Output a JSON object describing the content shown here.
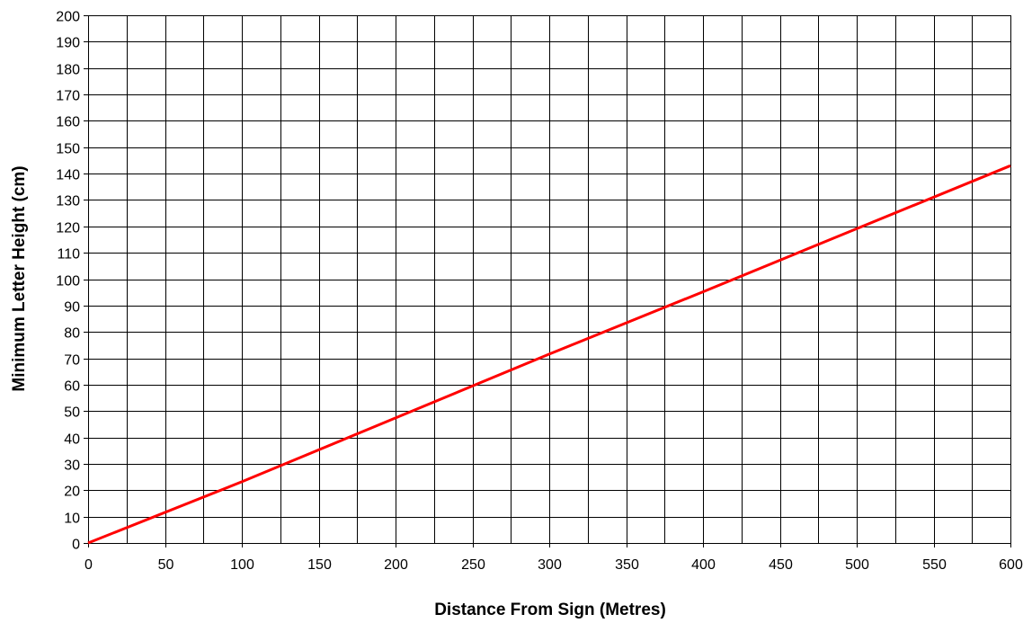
{
  "chart_data": {
    "type": "line",
    "title": "",
    "xlabel": "Distance From Sign (Metres)",
    "ylabel": "Minimum Letter Height (cm)",
    "xlim": [
      0,
      600
    ],
    "ylim": [
      0,
      200
    ],
    "x_ticks": [
      0,
      50,
      100,
      150,
      200,
      250,
      300,
      350,
      400,
      450,
      500,
      550,
      600
    ],
    "y_ticks": [
      0,
      10,
      20,
      30,
      40,
      50,
      60,
      70,
      80,
      90,
      100,
      110,
      120,
      130,
      140,
      150,
      160,
      170,
      180,
      190,
      200
    ],
    "x_minor_step": 25,
    "y_minor_step": 10,
    "grid": true,
    "legend": "none",
    "series": [
      {
        "color": "#ff0000",
        "x": [
          0,
          100,
          200,
          300,
          400,
          500,
          600
        ],
        "values": [
          0,
          23.2,
          47.4,
          71.6,
          95.2,
          119.1,
          143
        ]
      }
    ]
  },
  "colors": {
    "grid": "#000000",
    "axis": "#000000",
    "background": "#ffffff"
  }
}
